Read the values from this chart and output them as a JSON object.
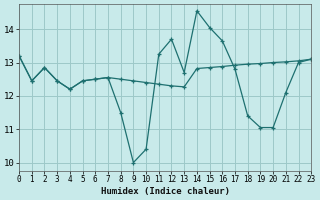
{
  "xlabel": "Humidex (Indice chaleur)",
  "bg_color": "#c8eaea",
  "grid_color": "#9dc8c8",
  "line_color": "#1e7070",
  "line1_y": [
    13.2,
    12.45,
    12.85,
    12.45,
    12.2,
    12.45,
    12.5,
    12.55,
    11.5,
    10.0,
    10.4,
    13.25,
    13.7,
    12.7,
    14.55,
    14.05,
    13.65,
    12.8,
    11.4,
    11.05,
    11.05,
    12.1,
    13.0,
    13.1
  ],
  "line2_y": [
    13.2,
    12.45,
    12.85,
    12.45,
    12.2,
    12.45,
    12.5,
    12.55,
    12.5,
    12.45,
    12.4,
    12.35,
    12.3,
    12.27,
    12.82,
    12.85,
    12.88,
    12.92,
    12.95,
    12.97,
    13.0,
    13.02,
    13.05,
    13.1
  ],
  "xlim": [
    0,
    23
  ],
  "ylim": [
    9.75,
    14.75
  ],
  "xticks": [
    0,
    1,
    2,
    3,
    4,
    5,
    6,
    7,
    8,
    9,
    10,
    11,
    12,
    13,
    14,
    15,
    16,
    17,
    18,
    19,
    20,
    21,
    22,
    23
  ],
  "yticks": [
    10,
    11,
    12,
    13,
    14
  ]
}
